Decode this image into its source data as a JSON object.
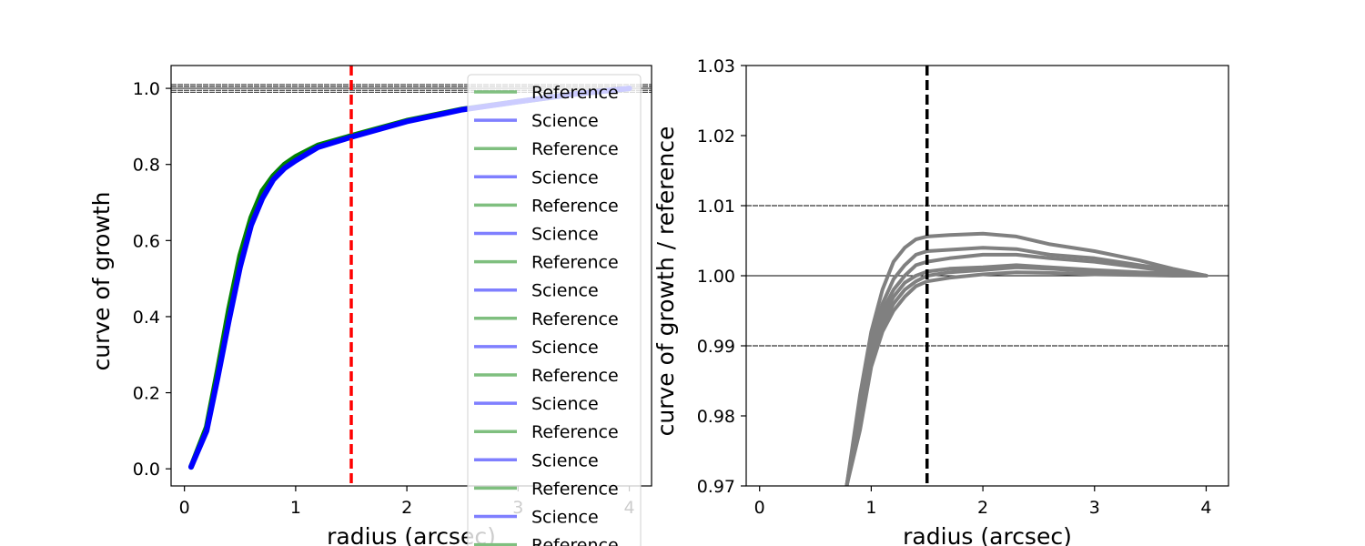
{
  "chart_data": [
    {
      "type": "line",
      "xlabel": "radius (arcsec)",
      "ylabel": "curve of growth",
      "xlim": [
        -0.12,
        4.2
      ],
      "ylim": [
        -0.045,
        1.06
      ],
      "xticks": [
        "0",
        "1",
        "2",
        "3",
        "4"
      ],
      "yticks": [
        "0.0",
        "0.2",
        "0.4",
        "0.6",
        "0.8",
        "1.0"
      ],
      "vline": {
        "x": 1.5,
        "color": "#ff0000",
        "style": "dashed"
      },
      "hlines": [
        0.99,
        0.995,
        1.0,
        1.005,
        1.01
      ],
      "legend": {
        "placement": "upper-right",
        "entries": [
          {
            "label": "Reference",
            "color": "#7fbf7f"
          },
          {
            "label": "Science",
            "color": "#7f7fff"
          },
          {
            "label": "Reference",
            "color": "#7fbf7f"
          },
          {
            "label": "Science",
            "color": "#7f7fff"
          },
          {
            "label": "Reference",
            "color": "#7fbf7f"
          },
          {
            "label": "Science",
            "color": "#7f7fff"
          },
          {
            "label": "Reference",
            "color": "#7fbf7f"
          },
          {
            "label": "Science",
            "color": "#7f7fff"
          },
          {
            "label": "Reference",
            "color": "#7fbf7f"
          },
          {
            "label": "Science",
            "color": "#7f7fff"
          },
          {
            "label": "Reference",
            "color": "#7fbf7f"
          },
          {
            "label": "Science",
            "color": "#7f7fff"
          },
          {
            "label": "Reference",
            "color": "#7fbf7f"
          },
          {
            "label": "Science",
            "color": "#7f7fff"
          },
          {
            "label": "Reference",
            "color": "#7fbf7f"
          },
          {
            "label": "Science",
            "color": "#7f7fff"
          },
          {
            "label": "Reference",
            "color": "#7fbf7f"
          }
        ]
      },
      "series": [
        {
          "color": "#008000",
          "x": [
            0.06,
            0.2,
            0.3,
            0.4,
            0.5,
            0.6,
            0.7,
            0.8,
            0.9,
            1.0,
            1.2,
            1.5,
            2.0,
            2.5,
            3.0,
            3.5,
            4.0
          ],
          "y": [
            0.005,
            0.11,
            0.26,
            0.42,
            0.56,
            0.66,
            0.73,
            0.77,
            0.8,
            0.82,
            0.85,
            0.875,
            0.915,
            0.945,
            0.965,
            0.985,
            1.0
          ]
        },
        {
          "color": "#0000ff",
          "x": [
            0.06,
            0.2,
            0.3,
            0.4,
            0.5,
            0.6,
            0.7,
            0.8,
            0.9,
            1.0,
            1.2,
            1.5,
            2.0,
            2.5,
            3.0,
            3.5,
            4.0
          ],
          "y": [
            0.005,
            0.1,
            0.24,
            0.39,
            0.53,
            0.64,
            0.71,
            0.76,
            0.79,
            0.81,
            0.845,
            0.872,
            0.913,
            0.944,
            0.965,
            0.985,
            1.0
          ]
        }
      ]
    },
    {
      "type": "line",
      "xlabel": "radius (arcsec)",
      "ylabel": "curve of growth / reference",
      "xlim": [
        -0.12,
        4.2
      ],
      "ylim": [
        0.97,
        1.03
      ],
      "xticks": [
        "0",
        "1",
        "2",
        "3",
        "4"
      ],
      "yticks": [
        "0.97",
        "0.98",
        "0.99",
        "1.00",
        "1.01",
        "1.02",
        "1.03"
      ],
      "vline": {
        "x": 1.5,
        "color": "#000000",
        "style": "dashed"
      },
      "hlines": [
        0.99,
        1.0,
        1.01
      ],
      "series": [
        {
          "color": "#808080",
          "x": [
            0.78,
            0.9,
            1.0,
            1.1,
            1.2,
            1.3,
            1.4,
            1.5,
            1.7,
            2.0,
            2.3,
            2.6,
            3.0,
            3.4,
            3.7,
            4.0
          ],
          "y": [
            0.97,
            0.983,
            0.992,
            0.998,
            1.002,
            1.004,
            1.0052,
            1.0056,
            1.0058,
            1.006,
            1.0056,
            1.0045,
            1.0035,
            1.0022,
            1.001,
            1.0
          ]
        },
        {
          "color": "#808080",
          "x": [
            0.78,
            0.9,
            1.0,
            1.1,
            1.2,
            1.3,
            1.4,
            1.5,
            1.7,
            2.0,
            2.3,
            2.6,
            3.0,
            3.4,
            3.7,
            4.0
          ],
          "y": [
            0.97,
            0.982,
            0.991,
            0.996,
            0.9995,
            1.0015,
            1.003,
            1.0035,
            1.0037,
            1.004,
            1.0038,
            1.003,
            1.0025,
            1.0015,
            1.0008,
            1.0
          ]
        },
        {
          "color": "#808080",
          "x": [
            0.78,
            0.9,
            1.0,
            1.1,
            1.2,
            1.3,
            1.4,
            1.5,
            1.7,
            2.0,
            2.3,
            2.6,
            3.0,
            3.4,
            3.7,
            4.0
          ],
          "y": [
            0.97,
            0.981,
            0.99,
            0.995,
            0.998,
            1.0,
            1.0015,
            1.002,
            1.0025,
            1.003,
            1.003,
            1.0025,
            1.002,
            1.0012,
            1.0006,
            1.0
          ]
        },
        {
          "color": "#808080",
          "x": [
            0.78,
            0.9,
            1.0,
            1.1,
            1.2,
            1.3,
            1.4,
            1.5,
            1.7,
            2.0,
            2.3,
            2.6,
            3.0,
            3.4,
            3.7,
            4.0
          ],
          "y": [
            0.97,
            0.98,
            0.989,
            0.994,
            0.997,
            0.999,
            1.0,
            1.0006,
            1.001,
            1.0012,
            1.0015,
            1.0012,
            1.0008,
            1.0005,
            1.0003,
            1.0
          ]
        },
        {
          "color": "#808080",
          "x": [
            0.78,
            0.9,
            1.0,
            1.1,
            1.2,
            1.3,
            1.4,
            1.5,
            1.7,
            2.0,
            2.3,
            2.6,
            3.0,
            3.4,
            3.7,
            4.0
          ],
          "y": [
            0.97,
            0.979,
            0.988,
            0.993,
            0.996,
            0.998,
            0.9992,
            1.0,
            1.0005,
            1.0008,
            1.0012,
            1.001,
            1.0006,
            1.0004,
            1.0002,
            1.0
          ]
        },
        {
          "color": "#808080",
          "x": [
            0.78,
            0.9,
            1.0,
            1.1,
            1.2,
            1.3,
            1.4,
            1.5,
            1.7,
            2.0,
            2.3,
            2.6,
            3.0,
            3.4,
            3.7,
            4.0
          ],
          "y": [
            0.97,
            0.978,
            0.987,
            0.992,
            0.995,
            0.997,
            0.9985,
            0.9992,
            0.9997,
            1.0002,
            1.0005,
            1.0004,
            1.0002,
            1.0001,
            1.0,
            1.0
          ]
        }
      ]
    }
  ]
}
